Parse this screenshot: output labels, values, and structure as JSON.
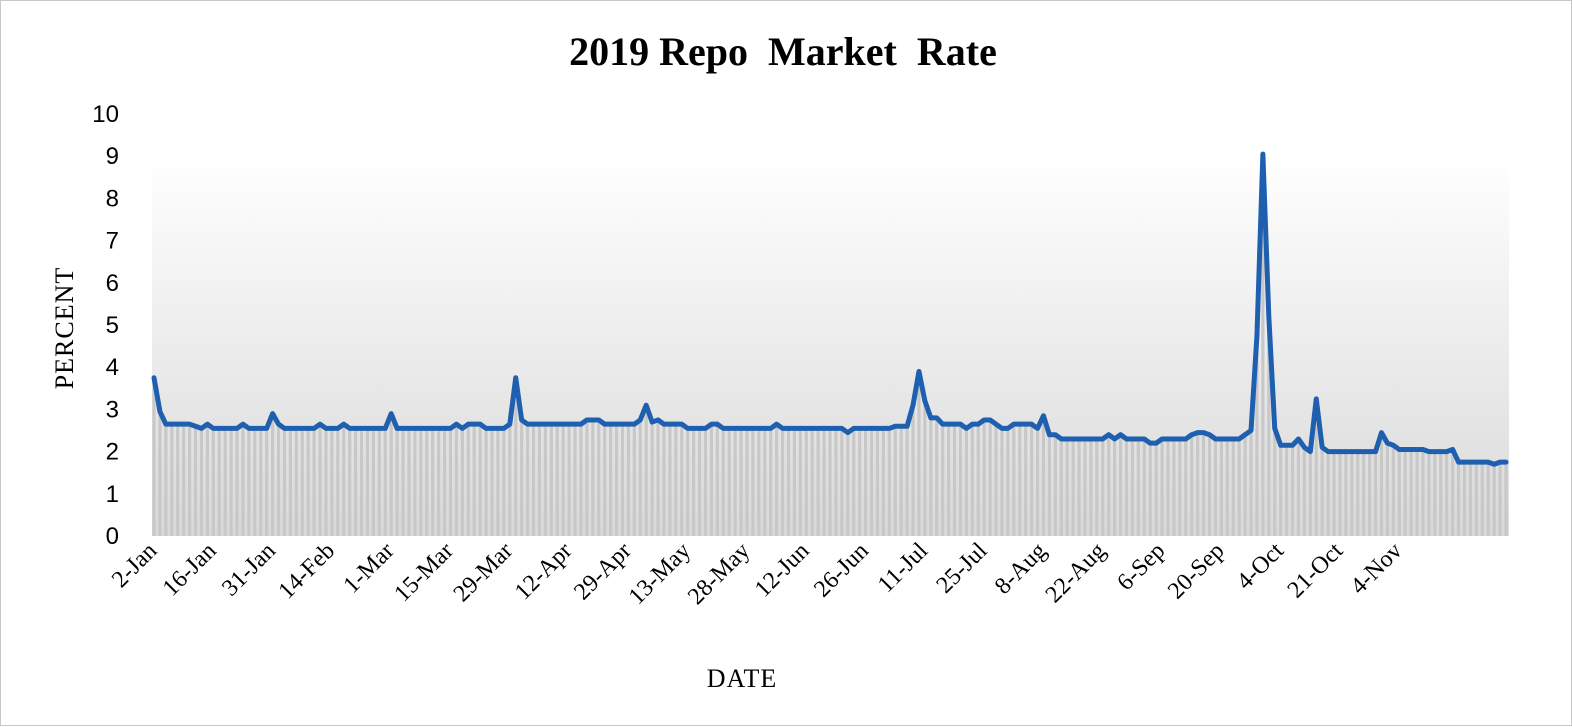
{
  "chart_data": {
    "type": "area",
    "title": "2019 Repo  Market  Rate",
    "xlabel": "DATE",
    "ylabel": "PERCENT",
    "ylim": [
      0,
      10
    ],
    "yticks": [
      0,
      1,
      2,
      3,
      4,
      5,
      6,
      7,
      8,
      9,
      10
    ],
    "grid": false,
    "legend": "none",
    "line_color": "#1f5fb0",
    "fill_color": "#c8c8c8",
    "x_tick_labels": [
      "2-Jan",
      "16-Jan",
      "31-Jan",
      "14-Feb",
      "1-Mar",
      "15-Mar",
      "29-Mar",
      "12-Apr",
      "29-Apr",
      "13-May",
      "28-May",
      "12-Jun",
      "26-Jun",
      "11-Jul",
      "25-Jul",
      "8-Aug",
      "22-Aug",
      "6-Sep",
      "20-Sep",
      "4-Oct",
      "21-Oct",
      "4-Nov"
    ],
    "x_tick_positions": [
      0,
      10,
      20,
      30,
      40,
      50,
      60,
      70,
      80,
      90,
      100,
      110,
      120,
      130,
      140,
      150,
      160,
      170,
      180,
      190,
      200,
      210
    ],
    "series": [
      {
        "values": [
          3.75,
          2.95,
          2.65,
          2.65,
          2.65,
          2.65,
          2.65,
          2.6,
          2.55,
          2.65,
          2.55,
          2.55,
          2.55,
          2.55,
          2.55,
          2.65,
          2.55,
          2.55,
          2.55,
          2.55,
          2.9,
          2.65,
          2.55,
          2.55,
          2.55,
          2.55,
          2.55,
          2.55,
          2.65,
          2.55,
          2.55,
          2.55,
          2.65,
          2.55,
          2.55,
          2.55,
          2.55,
          2.55,
          2.55,
          2.55,
          2.9,
          2.55,
          2.55,
          2.55,
          2.55,
          2.55,
          2.55,
          2.55,
          2.55,
          2.55,
          2.55,
          2.65,
          2.55,
          2.65,
          2.65,
          2.65,
          2.55,
          2.55,
          2.55,
          2.55,
          2.65,
          3.75,
          2.75,
          2.65,
          2.65,
          2.65,
          2.65,
          2.65,
          2.65,
          2.65,
          2.65,
          2.65,
          2.65,
          2.75,
          2.75,
          2.75,
          2.65,
          2.65,
          2.65,
          2.65,
          2.65,
          2.65,
          2.75,
          3.1,
          2.7,
          2.75,
          2.65,
          2.65,
          2.65,
          2.65,
          2.55,
          2.55,
          2.55,
          2.55,
          2.65,
          2.65,
          2.55,
          2.55,
          2.55,
          2.55,
          2.55,
          2.55,
          2.55,
          2.55,
          2.55,
          2.65,
          2.55,
          2.55,
          2.55,
          2.55,
          2.55,
          2.55,
          2.55,
          2.55,
          2.55,
          2.55,
          2.55,
          2.45,
          2.55,
          2.55,
          2.55,
          2.55,
          2.55,
          2.55,
          2.55,
          2.6,
          2.6,
          2.6,
          3.1,
          3.9,
          3.2,
          2.8,
          2.8,
          2.65,
          2.65,
          2.65,
          2.65,
          2.55,
          2.65,
          2.65,
          2.75,
          2.75,
          2.65,
          2.55,
          2.55,
          2.65,
          2.65,
          2.65,
          2.65,
          2.55,
          2.85,
          2.4,
          2.4,
          2.3,
          2.3,
          2.3,
          2.3,
          2.3,
          2.3,
          2.3,
          2.3,
          2.4,
          2.3,
          2.4,
          2.3,
          2.3,
          2.3,
          2.3,
          2.2,
          2.2,
          2.3,
          2.3,
          2.3,
          2.3,
          2.3,
          2.4,
          2.45,
          2.45,
          2.4,
          2.3,
          2.3,
          2.3,
          2.3,
          2.3,
          2.4,
          2.5,
          4.75,
          9.05,
          5.2,
          2.55,
          2.15,
          2.15,
          2.15,
          2.3,
          2.1,
          2.0,
          3.25,
          2.1,
          2.0,
          2.0,
          2.0,
          2.0,
          2.0,
          2.0,
          2.0,
          2.0,
          2.0,
          2.45,
          2.2,
          2.15,
          2.05,
          2.05,
          2.05,
          2.05,
          2.05,
          2.0,
          2.0,
          2.0,
          2.0,
          2.05,
          1.75,
          1.75,
          1.75,
          1.75,
          1.75,
          1.75,
          1.7,
          1.75,
          1.75
        ]
      }
    ]
  }
}
